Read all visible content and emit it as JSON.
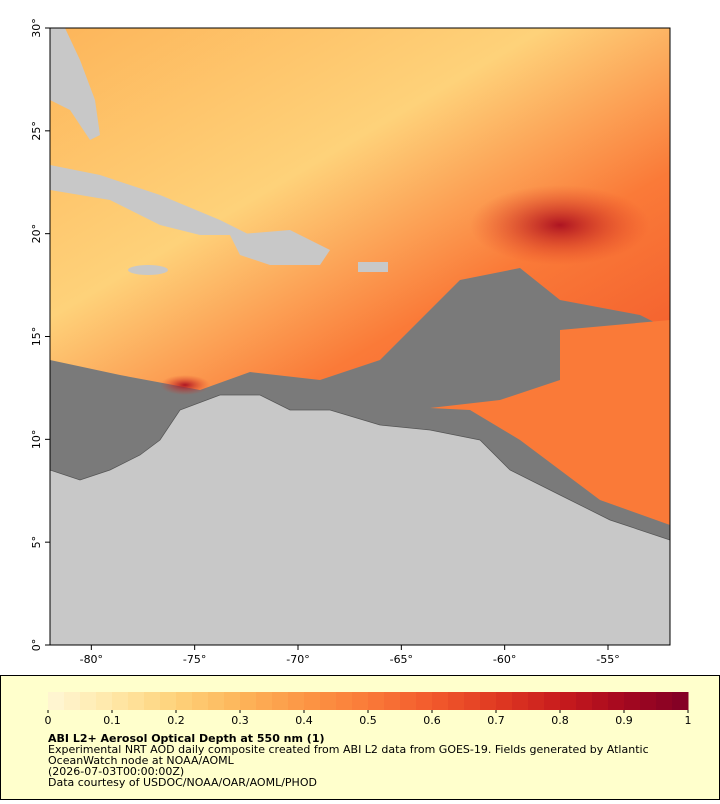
{
  "map": {
    "lon_range": [
      -82,
      -52
    ],
    "lat_range": [
      0,
      30
    ],
    "lon_ticks": [
      {
        "value": -80,
        "label": "-80°"
      },
      {
        "value": -75,
        "label": "-75°"
      },
      {
        "value": -70,
        "label": "-70°"
      },
      {
        "value": -65,
        "label": "-65°"
      },
      {
        "value": -60,
        "label": "-60°"
      },
      {
        "value": -55,
        "label": "-55°"
      }
    ],
    "lat_ticks": [
      {
        "value": 0,
        "label": "0°"
      },
      {
        "value": 5,
        "label": "5°"
      },
      {
        "value": 10,
        "label": "10°"
      },
      {
        "value": 15,
        "label": "15°"
      },
      {
        "value": 20,
        "label": "20°"
      },
      {
        "value": 25,
        "label": "25°"
      },
      {
        "value": 30,
        "label": "30°"
      }
    ]
  },
  "colorbar": {
    "range": [
      0,
      1
    ],
    "ticks": [
      0,
      0.1,
      0.2,
      0.3,
      0.4,
      0.5,
      0.6,
      0.7,
      0.8,
      0.9,
      1
    ],
    "colors": [
      "#fff7d6",
      "#ffe8a8",
      "#fed27a",
      "#fdb55a",
      "#fc9645",
      "#fa7a38",
      "#f25a2c",
      "#e03a22",
      "#c81b1d",
      "#a5081f",
      "#800026"
    ]
  },
  "caption": {
    "title": "ABI L2+ Aerosol Optical Depth at 550 nm (1)",
    "line1": "Experimental NRT AOD daily composite created from ABI L2 data from GOES-19. Fields generated by Atlantic",
    "line2": "OceanWatch node at NOAA/AOML",
    "time": "(2026-07-03T00:00:00Z)",
    "credit": "Data courtesy of USDOC/NOAA/OAR/AOML/PHOD"
  }
}
